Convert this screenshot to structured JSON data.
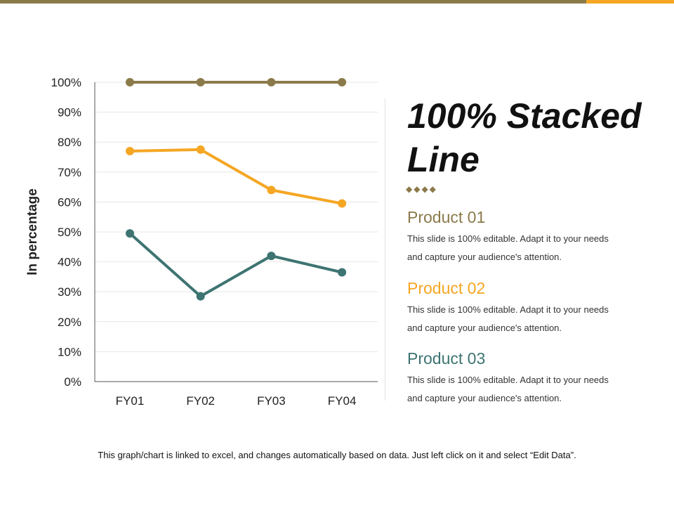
{
  "colors": {
    "accent_brown": "#8b7a4a",
    "accent_orange": "#f5a623",
    "accent_teal": "#3d7472"
  },
  "chart_data": {
    "type": "line",
    "categories": [
      "FY01",
      "FY02",
      "FY03",
      "FY04"
    ],
    "ylabel": "In percentage",
    "ylim": [
      0,
      100
    ],
    "yticks": [
      "0%",
      "10%",
      "20%",
      "30%",
      "40%",
      "50%",
      "60%",
      "70%",
      "80%",
      "90%",
      "100%"
    ],
    "grid": true,
    "series": [
      {
        "color": "#8b7a4a",
        "values": [
          100,
          100,
          100,
          100
        ]
      },
      {
        "color": "#f5a623",
        "values": [
          77,
          77.5,
          64,
          59.5
        ]
      },
      {
        "color": "#3d7472",
        "values": [
          49.5,
          28.5,
          42,
          36.5
        ]
      }
    ]
  },
  "slide": {
    "title": "100% Stacked Line",
    "decor": "◆◆◆◆",
    "products": [
      {
        "name": "Product 01",
        "color": "#8b7a4a",
        "line1": "This slide is 100% editable. Adapt it to your needs",
        "line2": "and capture your audience's attention."
      },
      {
        "name": "Product 02",
        "color": "#f5a623",
        "line1": "This slide is 100% editable. Adapt it to your needs",
        "line2": "and capture your audience's attention."
      },
      {
        "name": "Product 03",
        "color": "#3d7472",
        "line1": "This slide is 100% editable. Adapt it to your needs",
        "line2": "and capture your audience's attention."
      }
    ],
    "footnote": "This graph/chart is linked to excel, and changes automatically based on data. Just left click on it and select “Edit Data”."
  }
}
